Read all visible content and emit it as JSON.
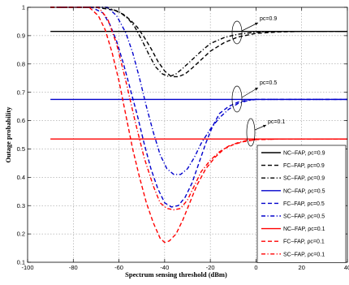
{
  "chart_data": {
    "type": "line",
    "title": "",
    "xlabel": "Spectrum sensing threshold (dBm)",
    "ylabel": "Outage probability",
    "xlim": [
      -100,
      40
    ],
    "ylim": [
      0.1,
      1
    ],
    "xticks": [
      "-100",
      "-80",
      "-60",
      "-40",
      "-20",
      "0",
      "20",
      "40"
    ],
    "xtick_values": [
      -100,
      -80,
      -60,
      -40,
      -20,
      0,
      20,
      40
    ],
    "yticks": [
      "0.1",
      "0.2",
      "0.3",
      "0.4",
      "0.5",
      "0.6",
      "0.7",
      "0.8",
      "0.9",
      "1"
    ],
    "ytick_values": [
      0.1,
      0.2,
      0.3,
      0.4,
      0.5,
      0.6,
      0.7,
      0.8,
      0.9,
      1
    ],
    "grid": true,
    "legend_position": "bottom-right",
    "colors": {
      "black": "#000000",
      "blue": "#0000cc",
      "red": "#ff0000"
    },
    "series": [
      {
        "name": "NC–FAP, ρc=0.9",
        "color": "#000000",
        "dash": "solid",
        "x": [
          -90,
          40
        ],
        "y": [
          0.915,
          0.915
        ]
      },
      {
        "name": "FC–FAP, ρc=0.9",
        "color": "#000000",
        "dash": "dashed",
        "x": [
          -90,
          -70,
          -62,
          -58,
          -55,
          -52,
          -49,
          -46,
          -43,
          -40,
          -37,
          -34,
          -31,
          -28,
          -24,
          -20,
          -14,
          -8,
          0,
          10,
          20,
          40
        ],
        "y": [
          1.0,
          1.0,
          0.99,
          0.975,
          0.955,
          0.93,
          0.895,
          0.855,
          0.81,
          0.775,
          0.755,
          0.755,
          0.765,
          0.785,
          0.815,
          0.845,
          0.875,
          0.895,
          0.908,
          0.913,
          0.915,
          0.915
        ]
      },
      {
        "name": "SC–FAP, ρc=0.9",
        "color": "#000000",
        "dash": "dashdot",
        "x": [
          -90,
          -66,
          -60,
          -56,
          -53,
          -50,
          -47,
          -44,
          -41,
          -38,
          -35,
          -32,
          -28,
          -24,
          -20,
          -14,
          -8,
          0,
          10,
          20,
          40
        ],
        "y": [
          1.0,
          1.0,
          0.985,
          0.96,
          0.93,
          0.885,
          0.835,
          0.79,
          0.765,
          0.755,
          0.765,
          0.785,
          0.815,
          0.845,
          0.872,
          0.893,
          0.905,
          0.912,
          0.915,
          0.915,
          0.915
        ]
      },
      {
        "name": "NC–FAP, ρc=0.5",
        "color": "#0000cc",
        "dash": "solid",
        "x": [
          -90,
          40
        ],
        "y": [
          0.675,
          0.675
        ]
      },
      {
        "name": "FC–FAP, ρc=0.5",
        "color": "#0000cc",
        "dash": "dashed",
        "x": [
          -90,
          -72,
          -67,
          -64,
          -61,
          -58,
          -55,
          -52,
          -49,
          -46,
          -43,
          -40,
          -37,
          -34,
          -31,
          -28,
          -25,
          -22,
          -19,
          -16,
          -12,
          -8,
          -4,
          0,
          10,
          20,
          40
        ],
        "y": [
          1.0,
          1.0,
          0.98,
          0.94,
          0.88,
          0.8,
          0.71,
          0.62,
          0.52,
          0.43,
          0.36,
          0.31,
          0.295,
          0.3,
          0.33,
          0.38,
          0.45,
          0.52,
          0.58,
          0.625,
          0.65,
          0.665,
          0.672,
          0.675,
          0.675,
          0.675,
          0.675
        ]
      },
      {
        "name": "SC–FAP, ρc=0.5",
        "color": "#0000cc",
        "dash": "dashdot",
        "x": [
          -90,
          -65,
          -61,
          -57,
          -54,
          -51,
          -48,
          -45,
          -42,
          -39,
          -36,
          -33,
          -30,
          -27,
          -24,
          -20,
          -16,
          -12,
          -8,
          -4,
          0,
          10,
          20,
          40
        ],
        "y": [
          1.0,
          1.0,
          0.97,
          0.91,
          0.84,
          0.75,
          0.65,
          0.56,
          0.48,
          0.43,
          0.41,
          0.41,
          0.43,
          0.47,
          0.52,
          0.57,
          0.61,
          0.64,
          0.66,
          0.67,
          0.675,
          0.675,
          0.675,
          0.675
        ]
      },
      {
        "name": "NC–FAP, ρc=0.1",
        "color": "#ff0000",
        "dash": "solid",
        "x": [
          -90,
          40
        ],
        "y": [
          0.535,
          0.535
        ]
      },
      {
        "name": "FC–FAP, ρc=0.1",
        "color": "#ff0000",
        "dash": "dashed",
        "x": [
          -90,
          -73,
          -69,
          -66,
          -63,
          -60,
          -57,
          -54,
          -51,
          -48,
          -45,
          -42,
          -40,
          -38,
          -35,
          -32,
          -29,
          -26,
          -22,
          -18,
          -14,
          -10,
          -6,
          -2,
          0,
          10,
          20,
          40
        ],
        "y": [
          1.0,
          1.0,
          0.97,
          0.92,
          0.84,
          0.74,
          0.62,
          0.5,
          0.4,
          0.31,
          0.24,
          0.185,
          0.17,
          0.175,
          0.2,
          0.25,
          0.31,
          0.37,
          0.43,
          0.47,
          0.5,
          0.515,
          0.525,
          0.53,
          0.533,
          0.535,
          0.535,
          0.535
        ]
      },
      {
        "name": "SC–FAP, ρc=0.1",
        "color": "#ff0000",
        "dash": "dashdot",
        "x": [
          -90,
          -69,
          -65,
          -61,
          -57,
          -53,
          -49,
          -45,
          -42,
          -39,
          -36,
          -33,
          -30,
          -27,
          -24,
          -20,
          -16,
          -12,
          -8,
          -4,
          0,
          10,
          20,
          40
        ],
        "y": [
          1.0,
          1.0,
          0.96,
          0.87,
          0.74,
          0.6,
          0.47,
          0.37,
          0.31,
          0.29,
          0.285,
          0.29,
          0.32,
          0.37,
          0.42,
          0.46,
          0.49,
          0.51,
          0.522,
          0.53,
          0.533,
          0.535,
          0.535,
          0.535
        ]
      }
    ],
    "annotations": [
      {
        "text": "pc=0.9",
        "x": 5,
        "y": 0.91
      },
      {
        "text": "pc=0.5",
        "x": 5,
        "y": 0.66
      },
      {
        "text": "pc=0.1",
        "x": 2,
        "y": 0.53
      }
    ]
  }
}
